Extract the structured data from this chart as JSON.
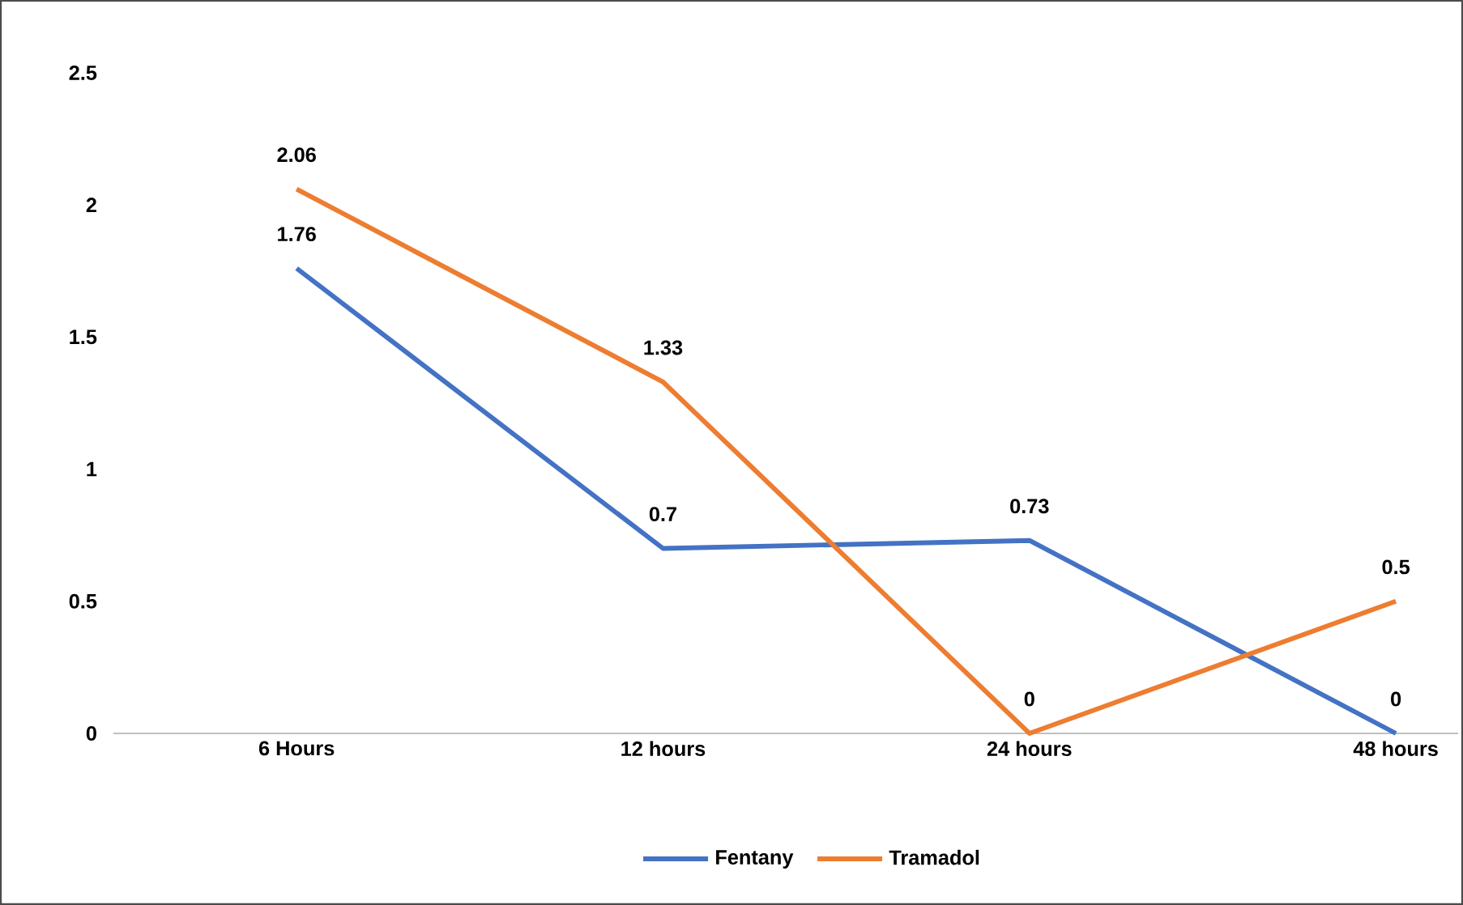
{
  "chart_data": {
    "type": "line",
    "categories": [
      "6 Hours",
      "12 hours",
      "24 hours",
      "48 hours"
    ],
    "series": [
      {
        "name": "Fentany",
        "color": "#4472c4",
        "values": [
          1.76,
          0.7,
          0.73,
          0
        ]
      },
      {
        "name": "Tramadol",
        "color": "#ed7d31",
        "values": [
          2.06,
          1.33,
          0,
          0.5
        ]
      }
    ],
    "ylim": [
      0,
      2.5
    ],
    "yticks": [
      0,
      0.5,
      1,
      1.5,
      2,
      2.5
    ],
    "grid": false,
    "legend": "bottom",
    "data_labels": true,
    "marker": "none",
    "line_style": "solid"
  }
}
